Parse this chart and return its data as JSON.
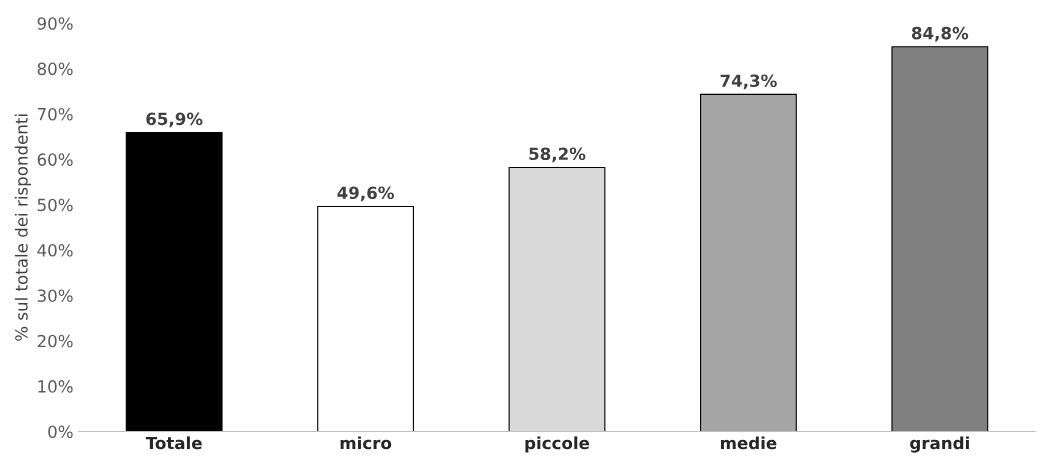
{
  "chart_data": {
    "type": "bar",
    "ylabel": "% sul totale dei rispondenti",
    "categories": [
      "Totale",
      "micro",
      "piccole",
      "medie",
      "grandi"
    ],
    "values": [
      65.9,
      49.6,
      58.2,
      74.3,
      84.8
    ],
    "colors": [
      "#000000",
      "#ffffff",
      "#d9d9d9",
      "#a6a6a6",
      "#808080"
    ],
    "value_labels": [
      "65,9%",
      "49,6%",
      "58,2%",
      "74,3%",
      "84,8%"
    ],
    "ylim": [
      0,
      90
    ],
    "yticks": [
      {
        "value": 0,
        "label": "0%"
      },
      {
        "value": 10,
        "label": "10%"
      },
      {
        "value": 20,
        "label": "20%"
      },
      {
        "value": 30,
        "label": "30%"
      },
      {
        "value": 40,
        "label": "40%"
      },
      {
        "value": 50,
        "label": "50%"
      },
      {
        "value": 60,
        "label": "60%"
      },
      {
        "value": 70,
        "label": "70%"
      },
      {
        "value": 80,
        "label": "80%"
      },
      {
        "value": 90,
        "label": "90%"
      }
    ],
    "grid": false,
    "legend": false
  }
}
